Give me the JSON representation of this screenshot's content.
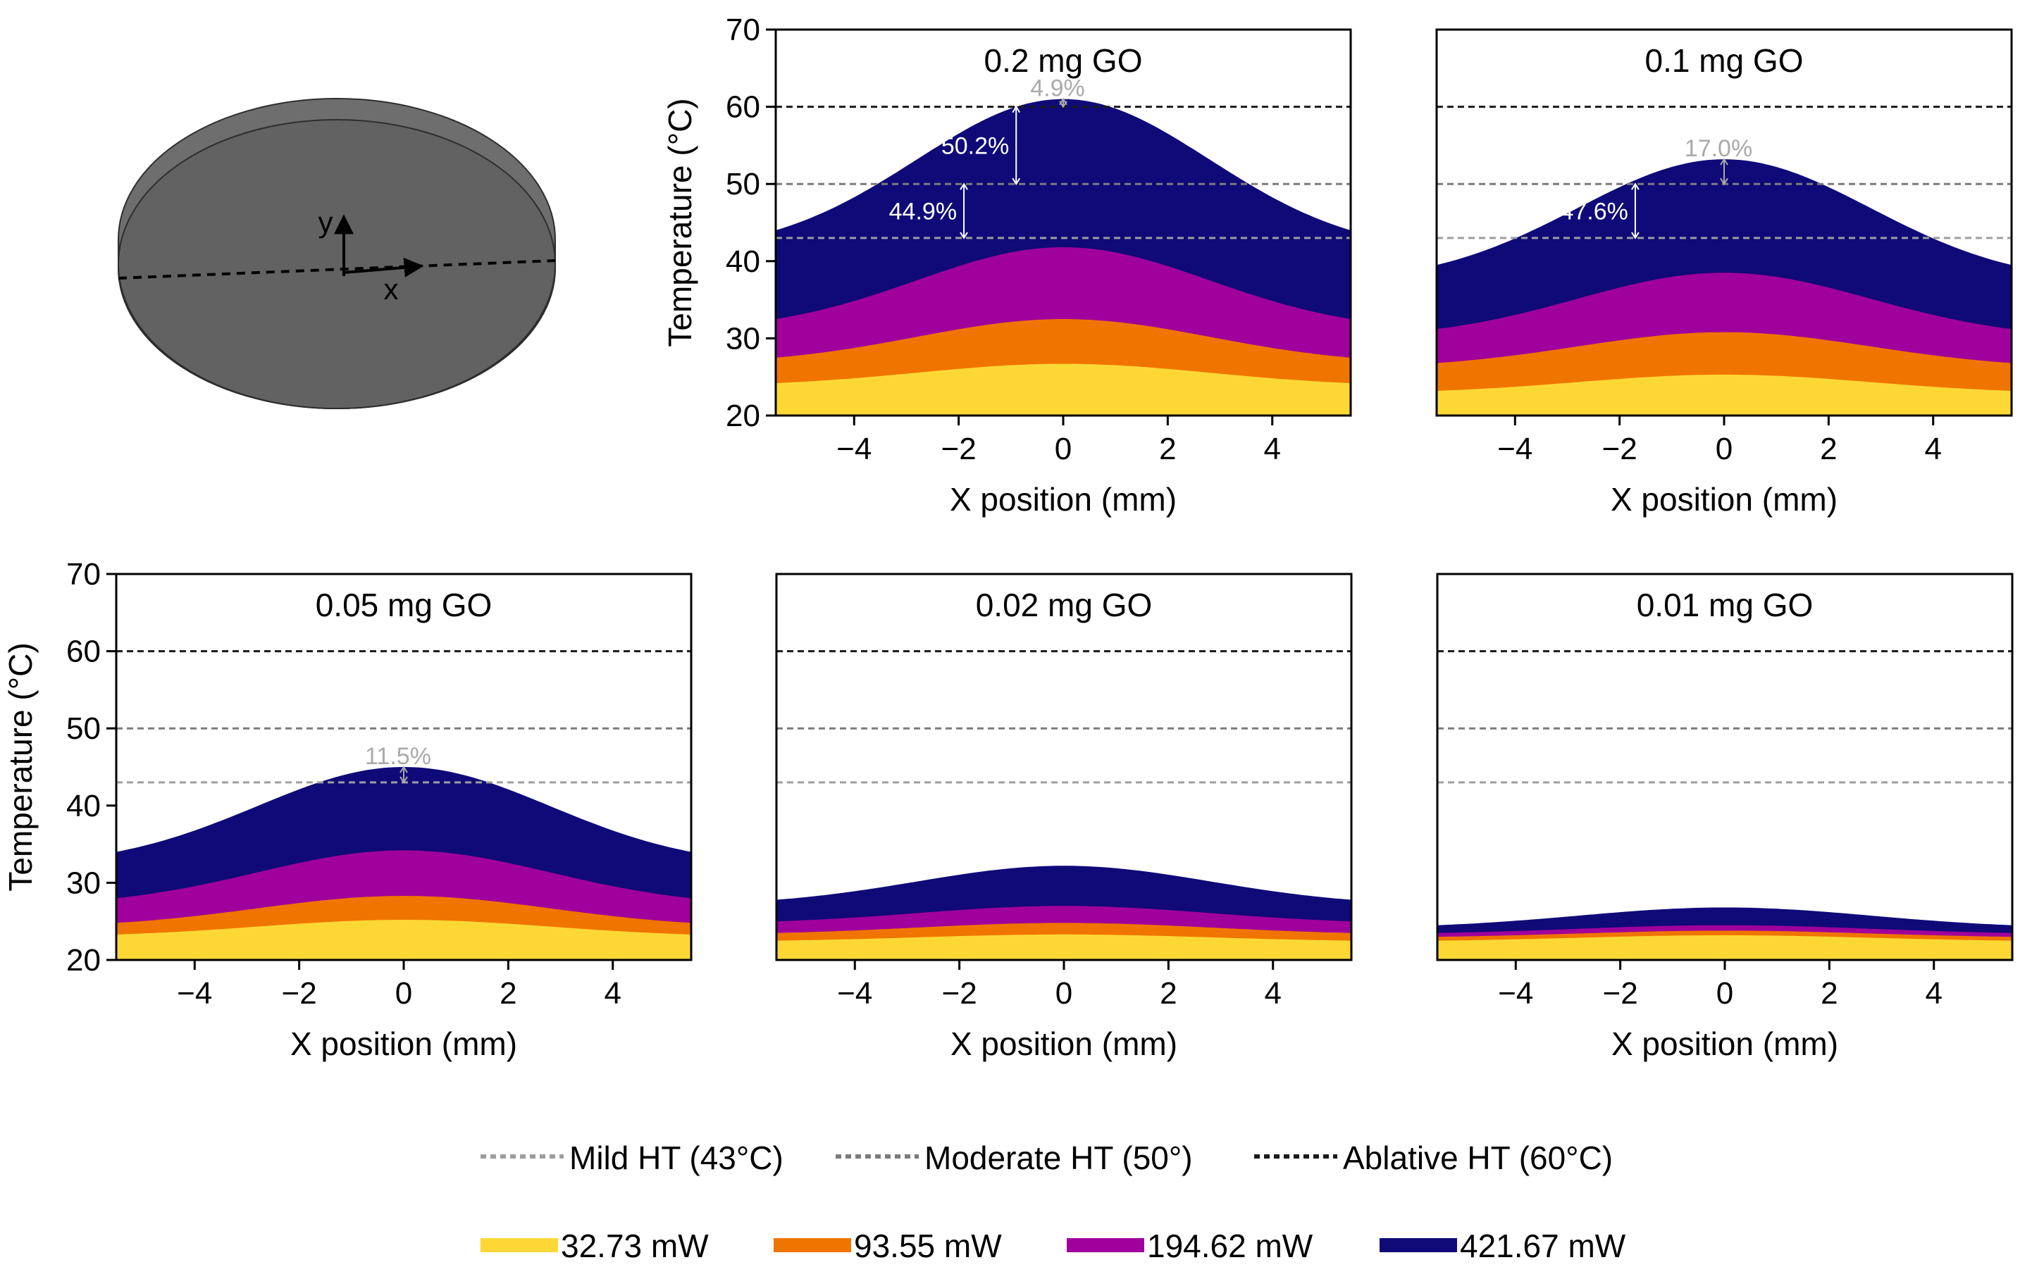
{
  "figure": {
    "diagram": {
      "y_label": "y",
      "x_label": "x"
    },
    "threshold_legend": [
      {
        "label": "Mild HT (43°C)",
        "color": "#9e9e9e",
        "value": 43
      },
      {
        "label": "Moderate HT (50°)",
        "color": "#7b7b7b",
        "value": 50
      },
      {
        "label": "Ablative HT (60°C)",
        "color": "#1a1a1a",
        "value": 60
      }
    ],
    "power_legend": [
      {
        "label": "32.73 mW",
        "color": "#fdd835"
      },
      {
        "label": "93.55 mW",
        "color": "#f07400"
      },
      {
        "label": "194.62 mW",
        "color": "#a0009b"
      },
      {
        "label": "421.67 mW",
        "color": "#0f0a78"
      }
    ]
  },
  "chart_data": [
    {
      "type": "area",
      "title": "0.2 mg GO",
      "xlabel": "X position (mm)",
      "ylabel": "Temperature (°C)",
      "xlim": [
        -5.5,
        5.5
      ],
      "ylim": [
        20,
        70
      ],
      "xticks": [
        -4,
        -2,
        0,
        2,
        4
      ],
      "yticks": [
        20,
        30,
        40,
        50,
        60,
        70
      ],
      "series": [
        {
          "name": "421.67 mW",
          "edge": 44,
          "peak": 61
        },
        {
          "name": "194.62 mW",
          "edge": 32.5,
          "peak": 41.8
        },
        {
          "name": "93.55 mW",
          "edge": 27.5,
          "peak": 32.5
        },
        {
          "name": "32.73 mW",
          "edge": 24.2,
          "peak": 26.7
        }
      ],
      "annotations": [
        {
          "text": "4.9%",
          "color": "#aaaaaa",
          "x": 0,
          "y_from": 60,
          "y_to": 61
        },
        {
          "text": "50.2%",
          "color": "#ffffff",
          "x": -0.9,
          "y_from": 50,
          "y_to": 60
        },
        {
          "text": "44.9%",
          "color": "#ffffff",
          "x": -1.9,
          "y_from": 43,
          "y_to": 50
        }
      ]
    },
    {
      "type": "area",
      "title": "0.1 mg GO",
      "xlabel": "X position (mm)",
      "ylabel": "",
      "xlim": [
        -5.5,
        5.5
      ],
      "ylim": [
        20,
        70
      ],
      "xticks": [
        -4,
        -2,
        0,
        2,
        4
      ],
      "yticks": [],
      "series": [
        {
          "name": "421.67 mW",
          "edge": 39.5,
          "peak": 53.2
        },
        {
          "name": "194.62 mW",
          "edge": 31.2,
          "peak": 38.5
        },
        {
          "name": "93.55 mW",
          "edge": 26.8,
          "peak": 30.8
        },
        {
          "name": "32.73 mW",
          "edge": 23.2,
          "peak": 25.3
        }
      ],
      "annotations": [
        {
          "text": "17.0%",
          "color": "#aaaaaa",
          "x": 0,
          "y_from": 50,
          "y_to": 53.2
        },
        {
          "text": "47.6%",
          "color": "#ffffff",
          "x": -1.7,
          "y_from": 43,
          "y_to": 50
        }
      ]
    },
    {
      "type": "area",
      "title": "0.05 mg GO",
      "xlabel": "X position (mm)",
      "ylabel": "Temperature (°C)",
      "xlim": [
        -5.5,
        5.5
      ],
      "ylim": [
        20,
        70
      ],
      "xticks": [
        -4,
        -2,
        0,
        2,
        4
      ],
      "yticks": [
        20,
        30,
        40,
        50,
        60,
        70
      ],
      "series": [
        {
          "name": "421.67 mW",
          "edge": 34,
          "peak": 45
        },
        {
          "name": "194.62 mW",
          "edge": 28,
          "peak": 34.2
        },
        {
          "name": "93.55 mW",
          "edge": 24.8,
          "peak": 28.3
        },
        {
          "name": "32.73 mW",
          "edge": 23.3,
          "peak": 25.2
        }
      ],
      "annotations": [
        {
          "text": "11.5%",
          "color": "#aaaaaa",
          "x": 0,
          "y_from": 43,
          "y_to": 45
        }
      ]
    },
    {
      "type": "area",
      "title": "0.02 mg GO",
      "xlabel": "X position (mm)",
      "ylabel": "",
      "xlim": [
        -5.5,
        5.5
      ],
      "ylim": [
        20,
        70
      ],
      "xticks": [
        -4,
        -2,
        0,
        2,
        4
      ],
      "yticks": [],
      "series": [
        {
          "name": "421.67 mW",
          "edge": 27.8,
          "peak": 32.2
        },
        {
          "name": "194.62 mW",
          "edge": 25,
          "peak": 27
        },
        {
          "name": "93.55 mW",
          "edge": 23.5,
          "peak": 24.8
        },
        {
          "name": "32.73 mW",
          "edge": 22.5,
          "peak": 23.3
        }
      ],
      "annotations": []
    },
    {
      "type": "area",
      "title": "0.01 mg GO",
      "xlabel": "X position (mm)",
      "ylabel": "",
      "xlim": [
        -5.5,
        5.5
      ],
      "ylim": [
        20,
        70
      ],
      "xticks": [
        -4,
        -2,
        0,
        2,
        4
      ],
      "yticks": [],
      "series": [
        {
          "name": "421.67 mW",
          "edge": 24.5,
          "peak": 26.8
        },
        {
          "name": "194.62 mW",
          "edge": 23.5,
          "peak": 24.5
        },
        {
          "name": "93.55 mW",
          "edge": 23,
          "peak": 23.8
        },
        {
          "name": "32.73 mW",
          "edge": 22.5,
          "peak": 23.2
        }
      ],
      "annotations": []
    }
  ]
}
